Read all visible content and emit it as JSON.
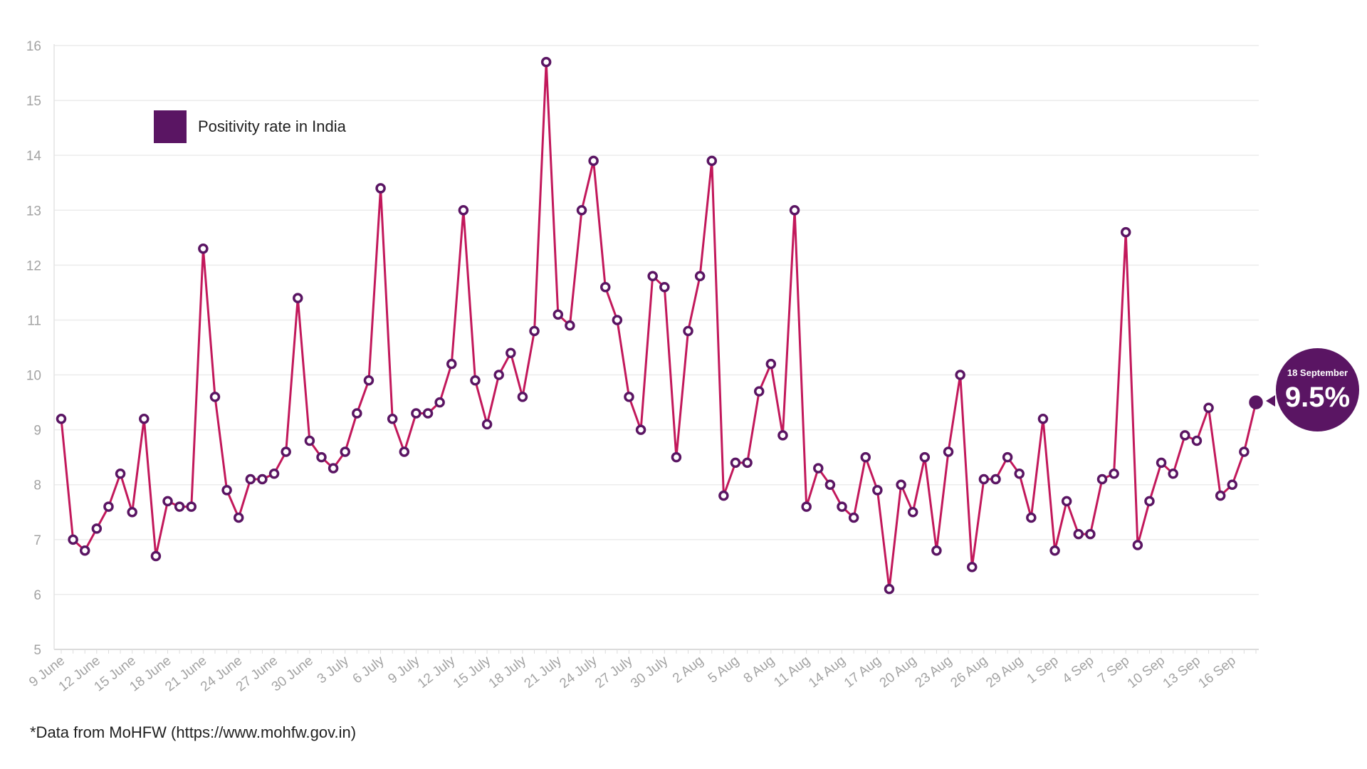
{
  "chart_data": {
    "type": "line",
    "x": [
      "9 June",
      "10 June",
      "11 June",
      "12 June",
      "13 June",
      "14 June",
      "15 June",
      "16 June",
      "17 June",
      "18 June",
      "19 June",
      "20 June",
      "21 June",
      "22 June",
      "23 June",
      "24 June",
      "25 June",
      "26 June",
      "27 June",
      "28 June",
      "29 June",
      "30 June",
      "1 July",
      "2 July",
      "3 July",
      "4 July",
      "5 July",
      "6 July",
      "7 July",
      "8 July",
      "9 July",
      "10 July",
      "11 July",
      "12 July",
      "13 July",
      "14 July",
      "15 July",
      "16 July",
      "17 July",
      "18 July",
      "19 July",
      "20 July",
      "21 July",
      "22 July",
      "23 July",
      "24 July",
      "25 July",
      "26 July",
      "27 July",
      "28 July",
      "29 July",
      "30 July",
      "31 July",
      "1 Aug",
      "2 Aug",
      "3 Aug",
      "4 Aug",
      "5 Aug",
      "6 Aug",
      "7 Aug",
      "8 Aug",
      "9 Aug",
      "10 Aug",
      "11 Aug",
      "12 Aug",
      "13 Aug",
      "14 Aug",
      "15 Aug",
      "16 Aug",
      "17 Aug",
      "18 Aug",
      "19 Aug",
      "20 Aug",
      "21 Aug",
      "22 Aug",
      "23 Aug",
      "24 Aug",
      "25 Aug",
      "26 Aug",
      "27 Aug",
      "28 Aug",
      "29 Aug",
      "30 Aug",
      "31 Aug",
      "1 Sep",
      "2 Sep",
      "3 Sep",
      "4 Sep",
      "5 Sep",
      "6 Sep",
      "7 Sep",
      "8 Sep",
      "9 Sep",
      "10 Sep",
      "11 Sep",
      "12 Sep",
      "13 Sep",
      "14 Sep",
      "15 Sep",
      "16 Sep",
      "17 Sep",
      "18 Sep"
    ],
    "series": [
      {
        "name": "Positivity rate in India",
        "values": [
          9.2,
          7.0,
          6.8,
          7.2,
          7.6,
          8.2,
          7.5,
          9.2,
          6.7,
          7.7,
          7.6,
          7.6,
          12.3,
          9.6,
          7.9,
          7.4,
          8.1,
          8.1,
          8.2,
          8.6,
          11.4,
          8.8,
          8.5,
          8.3,
          8.6,
          9.3,
          9.9,
          13.4,
          9.2,
          8.6,
          9.3,
          9.3,
          9.5,
          10.2,
          13.0,
          9.9,
          9.1,
          10.0,
          10.4,
          9.6,
          10.8,
          15.7,
          11.1,
          10.9,
          13.0,
          13.9,
          11.6,
          11.0,
          9.6,
          9.0,
          11.8,
          11.6,
          8.5,
          10.8,
          11.8,
          13.9,
          7.8,
          8.4,
          8.4,
          9.7,
          10.2,
          8.9,
          13.0,
          7.6,
          8.3,
          8.0,
          7.6,
          7.4,
          8.5,
          7.9,
          6.1,
          8.0,
          7.5,
          8.5,
          6.8,
          8.6,
          10.0,
          6.5,
          8.1,
          8.1,
          8.5,
          8.2,
          7.4,
          9.2,
          6.8,
          7.7,
          7.1,
          7.1,
          8.1,
          8.2,
          12.6,
          6.9,
          7.7,
          8.4,
          8.2,
          8.9,
          8.8,
          9.4,
          7.8,
          8.0,
          8.6,
          9.5
        ]
      }
    ],
    "x_tick_labels": [
      "9 June",
      "12 June",
      "15 June",
      "18 June",
      "21 June",
      "24 June",
      "27 June",
      "30 June",
      "3 July",
      "6 July",
      "9 July",
      "12 July",
      "15 July",
      "18 July",
      "21 July",
      "24 July",
      "27 July",
      "30 July",
      "2 Aug",
      "5 Aug",
      "8 Aug",
      "11 Aug",
      "14 Aug",
      "17 Aug",
      "20 Aug",
      "23 Aug",
      "26 Aug",
      "29 Aug",
      "1 Sep",
      "4 Sep",
      "7 Sep",
      "10 Sep",
      "13 Sep",
      "16 Sep"
    ],
    "y_ticks": [
      "5",
      "6",
      "7",
      "8",
      "9",
      "10",
      "11",
      "12",
      "13",
      "14",
      "15",
      "16"
    ],
    "ylim": [
      5,
      16
    ],
    "grid": true,
    "legend": "top-left",
    "line_color": "#c2185b",
    "marker_color": "#5a1563"
  },
  "legend": {
    "label": "Positivity rate in India"
  },
  "callout": {
    "date": "18 September",
    "value": "9.5%"
  },
  "footnote": "*Data from MoHFW (https://www.mohfw.gov.in)"
}
